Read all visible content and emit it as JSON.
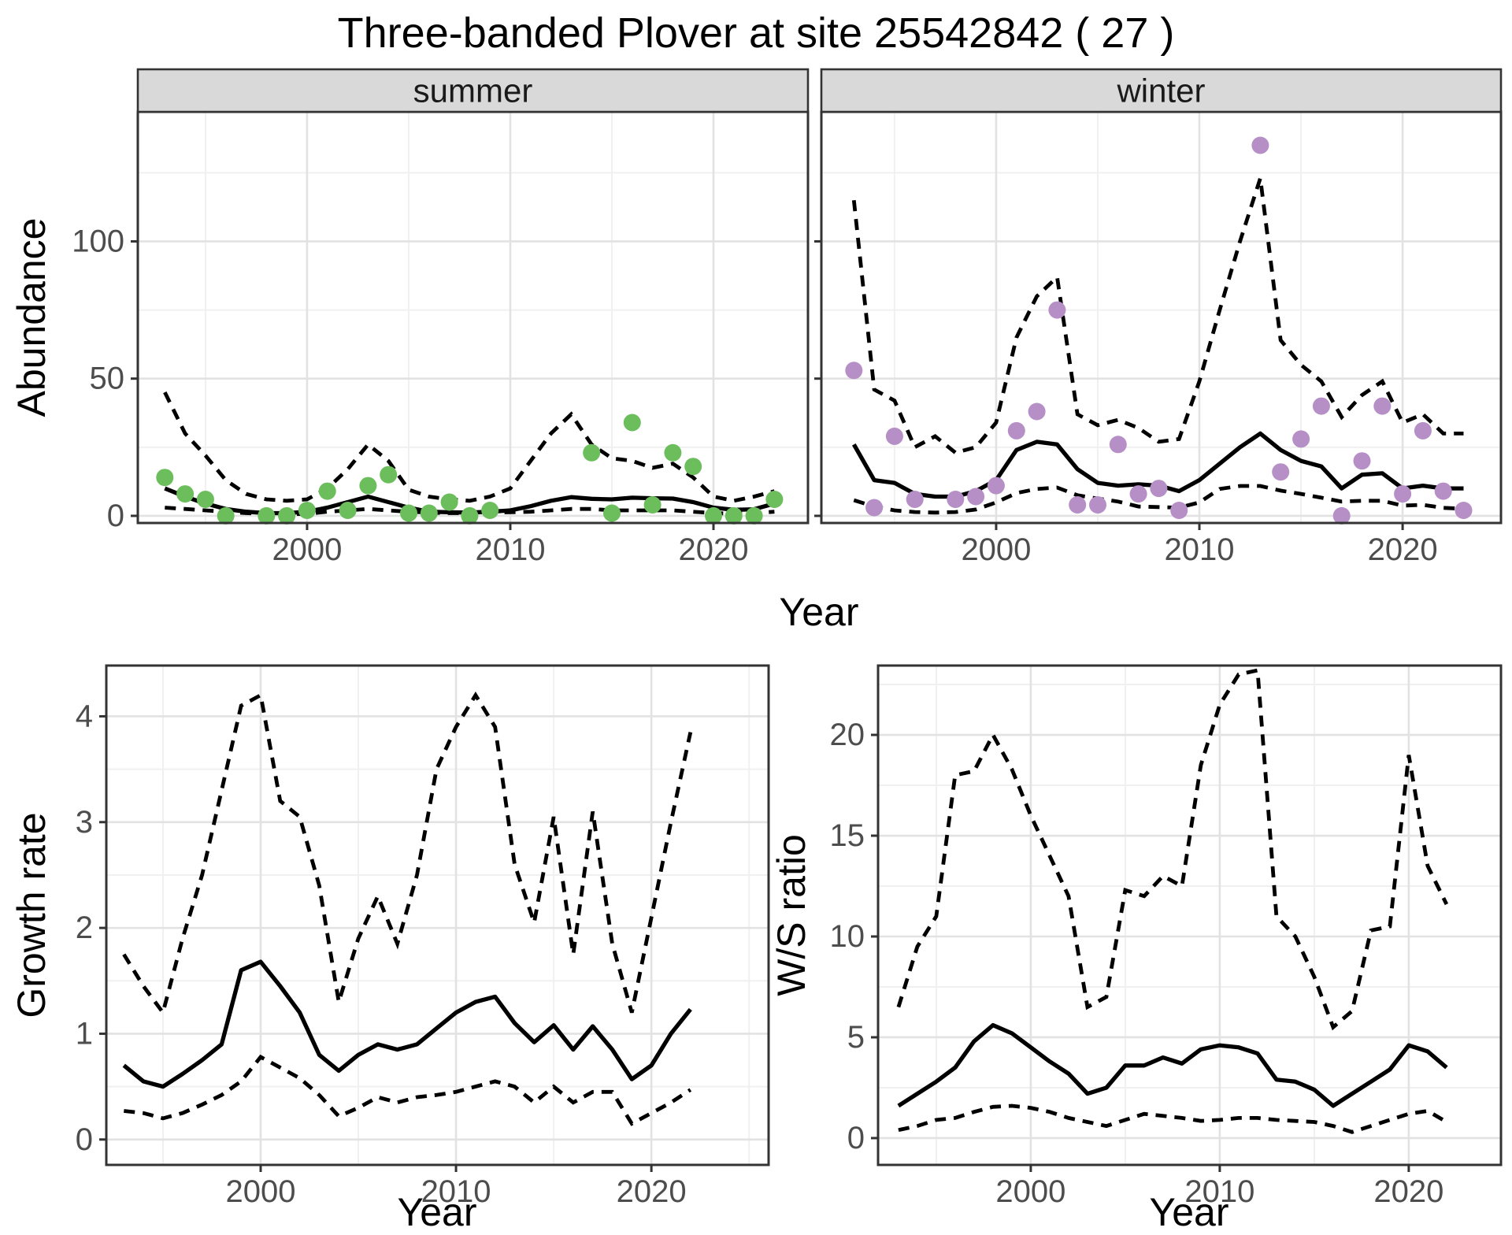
{
  "title": "Three-banded Plover at site 25542842 ( 27 )",
  "axes": {
    "top_y_label": "Abundance",
    "top_x_label": "Year",
    "bottom_left_y_label": "Growth rate",
    "bottom_left_x_label": "Year",
    "bottom_right_y_label": "W/S ratio",
    "bottom_right_x_label": "Year"
  },
  "colors": {
    "summer_point": "#6CBE5C",
    "winter_point": "#B58FC6",
    "line": "#000000",
    "strip_bg": "#D9D9D9",
    "strip_text": "#1A1A1A",
    "panel_border": "#333333",
    "grid_major": "#E2E2E2",
    "grid_minor": "#F0F0F0",
    "tick_text": "#4D4D4D",
    "background": "#FFFFFF"
  },
  "chart_data": [
    {
      "id": "abundance_summer",
      "type": "line+scatter",
      "facet_label": "summer",
      "xlabel": "Year",
      "ylabel": "Abundance",
      "xlim": [
        1991.67,
        2024.65
      ],
      "ylim": [
        -2.6,
        147.2
      ],
      "x_major_ticks": [
        2000,
        2010,
        2020
      ],
      "x_minor": [
        1995,
        2005,
        2015
      ],
      "y_major_ticks": [
        0,
        50,
        100
      ],
      "y_minor": [
        25,
        75,
        125
      ],
      "show_y_tick_labels": true,
      "years": [
        1993,
        1994,
        1995,
        1996,
        1997,
        1998,
        1999,
        2000,
        2001,
        2002,
        2003,
        2004,
        2005,
        2006,
        2007,
        2008,
        2009,
        2010,
        2011,
        2012,
        2013,
        2014,
        2015,
        2016,
        2017,
        2018,
        2019,
        2020,
        2021,
        2022,
        2023
      ],
      "mean": [
        10,
        7,
        4.5,
        2.5,
        1.5,
        1,
        1,
        1.5,
        3,
        5,
        7,
        5,
        3,
        1.5,
        1.3,
        1.2,
        1.5,
        2,
        3.5,
        5.5,
        6.8,
        6.2,
        6,
        6.6,
        6.4,
        6.3,
        5,
        3,
        2.2,
        2.4,
        4.5
      ],
      "upper_ci": [
        45,
        30,
        22,
        13,
        8,
        6,
        5.5,
        6,
        10,
        17,
        26,
        20,
        9.5,
        7,
        6,
        5.5,
        7,
        10,
        20,
        30,
        37,
        26,
        21,
        20,
        17.5,
        19,
        14,
        7,
        5.5,
        7,
        9
      ],
      "lower_ci": [
        3,
        2.5,
        2,
        1.5,
        1,
        0.7,
        0.6,
        0.7,
        1.5,
        2,
        2.5,
        2,
        1.5,
        1.2,
        1,
        1,
        1.2,
        1.3,
        1.5,
        2,
        2.5,
        2.5,
        2,
        2,
        2,
        2,
        1.5,
        1,
        0.8,
        1,
        1.5
      ],
      "points": {
        "years": [
          1993,
          1994,
          1995,
          1996,
          1998,
          1999,
          2000,
          2001,
          2002,
          2003,
          2004,
          2005,
          2006,
          2007,
          2008,
          2009,
          2014,
          2015,
          2016,
          2017,
          2018,
          2019,
          2020,
          2021,
          2022,
          2023
        ],
        "values": [
          14,
          8,
          6,
          0,
          0,
          0,
          2,
          9,
          2,
          11,
          15,
          1,
          1,
          5,
          0,
          2,
          23,
          1,
          34,
          4,
          23,
          18,
          0,
          0,
          0,
          6
        ],
        "color_key": "summer_point"
      }
    },
    {
      "id": "abundance_winter",
      "type": "line+scatter",
      "facet_label": "winter",
      "xlabel": "Year",
      "ylabel": "Abundance",
      "xlim": [
        1991.4,
        2024.84
      ],
      "ylim": [
        -2.6,
        147.2
      ],
      "x_major_ticks": [
        2000,
        2010,
        2020
      ],
      "x_minor": [
        1995,
        2005,
        2015
      ],
      "y_major_ticks": [
        0,
        50,
        100
      ],
      "y_minor": [
        25,
        75,
        125
      ],
      "show_y_tick_labels": false,
      "years": [
        1993,
        1994,
        1995,
        1996,
        1997,
        1998,
        1999,
        2000,
        2001,
        2002,
        2003,
        2004,
        2005,
        2006,
        2007,
        2008,
        2009,
        2010,
        2011,
        2012,
        2013,
        2014,
        2015,
        2016,
        2017,
        2018,
        2019,
        2020,
        2021,
        2022,
        2023
      ],
      "mean": [
        26,
        13,
        12,
        8,
        7,
        7,
        9,
        13,
        24,
        27,
        26,
        17,
        12,
        11,
        11.5,
        11,
        9,
        13,
        19,
        25,
        30,
        24,
        20,
        18,
        10,
        15,
        15.5,
        10,
        11,
        10,
        10
      ],
      "upper_ci": [
        115,
        46,
        42,
        25,
        29,
        23,
        25,
        34,
        65,
        80,
        87,
        37,
        33,
        35,
        32,
        27,
        28,
        49,
        75,
        100,
        123,
        64,
        55,
        49,
        36,
        44,
        49,
        34,
        37,
        30,
        30
      ],
      "lower_ci": [
        5.7,
        3.4,
        2,
        1.4,
        1.2,
        1.4,
        2.3,
        4.9,
        8.3,
        9.8,
        10.3,
        7.5,
        6.3,
        5.2,
        3.4,
        3.2,
        3,
        4.9,
        9.8,
        10.9,
        10.9,
        9.2,
        8,
        6.6,
        5.2,
        5.5,
        5.5,
        3.7,
        4,
        2.9,
        2.6
      ],
      "points": {
        "years": [
          1993,
          1994,
          1995,
          1996,
          1998,
          1999,
          2000,
          2001,
          2002,
          2003,
          2004,
          2005,
          2006,
          2007,
          2008,
          2009,
          2013,
          2014,
          2015,
          2016,
          2017,
          2018,
          2019,
          2020,
          2021,
          2022,
          2023
        ],
        "values": [
          53,
          3,
          29,
          6,
          6,
          7,
          11,
          31,
          38,
          75,
          4,
          4,
          26,
          8,
          10,
          2,
          135,
          16,
          28,
          40,
          0,
          20,
          40,
          8,
          31,
          9,
          2
        ],
        "color_key": "winter_point"
      }
    },
    {
      "id": "growth_rate",
      "type": "line",
      "facet_label": null,
      "xlabel": "Year",
      "ylabel": "Growth rate",
      "xlim": [
        1992.1,
        2026.0
      ],
      "ylim": [
        -0.24,
        4.48
      ],
      "x_major_ticks": [
        2000,
        2010,
        2020
      ],
      "x_minor": [
        1995,
        2005,
        2015,
        2025
      ],
      "y_major_ticks": [
        0,
        1,
        2,
        3,
        4
      ],
      "y_minor": [
        0.5,
        1.5,
        2.5,
        3.5
      ],
      "show_y_tick_labels": true,
      "years": [
        1993,
        1994,
        1995,
        1996,
        1997,
        1998,
        1999,
        2000,
        2001,
        2002,
        2003,
        2004,
        2005,
        2006,
        2007,
        2008,
        2009,
        2010,
        2011,
        2012,
        2013,
        2014,
        2015,
        2016,
        2017,
        2018,
        2019,
        2020,
        2021,
        2022
      ],
      "mean": [
        0.7,
        0.55,
        0.5,
        0.62,
        0.75,
        0.9,
        1.6,
        1.68,
        1.45,
        1.2,
        0.8,
        0.65,
        0.8,
        0.9,
        0.85,
        0.9,
        1.05,
        1.2,
        1.3,
        1.35,
        1.1,
        0.92,
        1.08,
        0.85,
        1.07,
        0.85,
        0.57,
        0.7,
        1.0,
        1.23
      ],
      "upper_ci": [
        1.75,
        1.45,
        1.2,
        1.9,
        2.5,
        3.3,
        4.1,
        4.2,
        3.2,
        3.05,
        2.4,
        1.3,
        1.9,
        2.3,
        1.85,
        2.5,
        3.5,
        3.9,
        4.2,
        3.9,
        2.6,
        2.05,
        3.05,
        1.75,
        3.1,
        1.85,
        1.2,
        2.1,
        3.0,
        3.85
      ],
      "lower_ci": [
        0.27,
        0.25,
        0.2,
        0.25,
        0.33,
        0.42,
        0.55,
        0.78,
        0.68,
        0.58,
        0.42,
        0.22,
        0.3,
        0.4,
        0.35,
        0.4,
        0.42,
        0.45,
        0.5,
        0.55,
        0.5,
        0.35,
        0.5,
        0.35,
        0.45,
        0.45,
        0.15,
        0.25,
        0.35,
        0.47
      ],
      "points": null
    },
    {
      "id": "ws_ratio",
      "type": "line",
      "facet_label": null,
      "xlabel": "Year",
      "ylabel": "W/S ratio",
      "xlim": [
        1991.92,
        2024.88
      ],
      "ylim": [
        -1.33,
        23.44
      ],
      "x_major_ticks": [
        2000,
        2010,
        2020
      ],
      "x_minor": [
        1995,
        2005,
        2015
      ],
      "y_major_ticks": [
        0,
        5,
        10,
        15,
        20
      ],
      "y_minor": [
        2.5,
        7.5,
        12.5,
        17.5,
        22.5
      ],
      "show_y_tick_labels": true,
      "years": [
        1993,
        1994,
        1995,
        1996,
        1997,
        1998,
        1999,
        2000,
        2001,
        2002,
        2003,
        2004,
        2005,
        2006,
        2007,
        2008,
        2009,
        2010,
        2011,
        2012,
        2013,
        2014,
        2015,
        2016,
        2017,
        2018,
        2019,
        2020,
        2021,
        2022
      ],
      "mean": [
        1.6,
        2.2,
        2.8,
        3.5,
        4.8,
        5.6,
        5.2,
        4.5,
        3.8,
        3.2,
        2.2,
        2.5,
        3.6,
        3.6,
        4.0,
        3.7,
        4.4,
        4.6,
        4.5,
        4.2,
        2.9,
        2.8,
        2.4,
        1.6,
        2.2,
        2.8,
        3.4,
        4.6,
        4.3,
        3.5
      ],
      "upper_ci": [
        6.5,
        9.5,
        11,
        18,
        18.2,
        20,
        18.3,
        16,
        14,
        12,
        6.5,
        7,
        12.3,
        12,
        13,
        12.5,
        18.5,
        21.5,
        23,
        23.2,
        11,
        10,
        8,
        5.5,
        6.3,
        10.3,
        10.5,
        19,
        13.5,
        11.6
      ],
      "lower_ci": [
        0.4,
        0.6,
        0.9,
        1.0,
        1.3,
        1.55,
        1.6,
        1.5,
        1.3,
        1.0,
        0.8,
        0.6,
        0.9,
        1.2,
        1.1,
        1.0,
        0.85,
        0.9,
        1.0,
        1.0,
        0.9,
        0.85,
        0.8,
        0.6,
        0.3,
        0.6,
        0.9,
        1.2,
        1.35,
        0.8
      ],
      "points": null
    }
  ]
}
